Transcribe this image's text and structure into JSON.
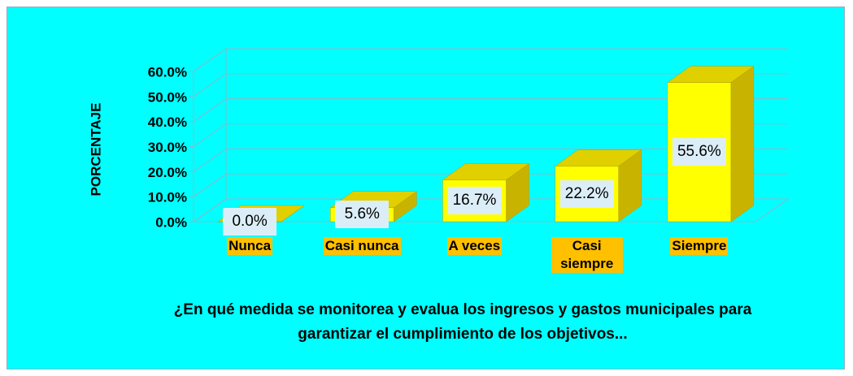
{
  "chart_data": {
    "type": "bar3d",
    "categories": [
      "Nunca",
      "Casi nunca",
      "A veces",
      "Casi siempre",
      "Siempre"
    ],
    "values": [
      0,
      5.6,
      16.7,
      22.2,
      55.6
    ],
    "value_labels": [
      "0.0%",
      "5.6%",
      "16.7%",
      "22.2%",
      "55.6%"
    ],
    "color": "#ffff00",
    "ylabel": "PORCENTAJE",
    "xlabel": "¿En qué medida se monitorea y evalua los ingresos y gastos municipales para garantizar el cumplimiento de los objetivos...",
    "ylim": [
      0,
      60
    ],
    "yticks": [
      {
        "value": 0,
        "label": "0.0%"
      },
      {
        "value": 10,
        "label": "10.0%"
      },
      {
        "value": 20,
        "label": "20.0%"
      },
      {
        "value": 30,
        "label": "30.0%"
      },
      {
        "value": 40,
        "label": "40.0%"
      },
      {
        "value": 50,
        "label": "50.0%"
      },
      {
        "value": 60,
        "label": "60.0%"
      }
    ],
    "grid": true
  }
}
